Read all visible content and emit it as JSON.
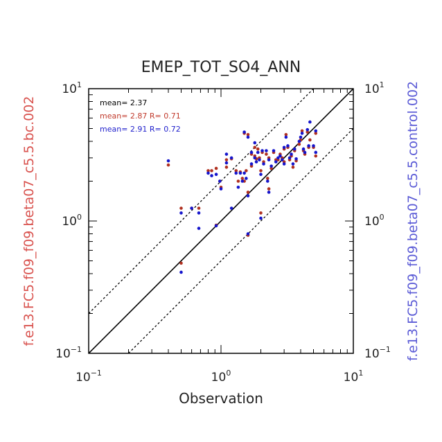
{
  "chart_data": {
    "type": "scatter",
    "title": "EMEP_TOT_SO4_ANN",
    "xlabel": "Observation",
    "ylabel_left": "f.e13.FC5.f09_f09.beta07_c5.5.bc.002",
    "ylabel_right": "f.e13.FC5.f09_f09.beta07_c5.5.control.002",
    "xscale": "log",
    "yscale": "log",
    "xlim": [
      0.1,
      10
    ],
    "ylim": [
      0.1,
      10
    ],
    "x_ticks": [
      {
        "base": "10",
        "exp": "−1",
        "value": 0.1
      },
      {
        "base": "10",
        "exp": "0",
        "value": 1
      },
      {
        "base": "10",
        "exp": "1",
        "value": 10
      }
    ],
    "y_ticks": [
      {
        "base": "10",
        "exp": "−1",
        "value": 0.1
      },
      {
        "base": "10",
        "exp": "0",
        "value": 1
      },
      {
        "base": "10",
        "exp": "1",
        "value": 10
      }
    ],
    "reference_lines": [
      {
        "name": "1:1",
        "factor": 1,
        "style": "solid"
      },
      {
        "name": "2:1",
        "factor": 2,
        "style": "dotted"
      },
      {
        "name": "1:2",
        "factor": 0.5,
        "style": "dotted"
      }
    ],
    "stats": [
      {
        "text": "mean= 2.37",
        "color": "#000000"
      },
      {
        "text": "mean= 2.87 R= 0.71",
        "color": "#c0392b"
      },
      {
        "text": "mean= 2.91 R= 0.72",
        "color": "#1f1fcc"
      }
    ],
    "series": [
      {
        "name": "f.e13.FC5.f09_f09.beta07_c5.5.bc.002",
        "color": "#b03020",
        "points": [
          [
            0.4,
            2.65
          ],
          [
            0.5,
            1.25
          ],
          [
            0.5,
            0.48
          ],
          [
            0.6,
            1.25
          ],
          [
            0.68,
            1.25
          ],
          [
            0.8,
            2.4
          ],
          [
            0.85,
            2.4
          ],
          [
            0.92,
            2.5
          ],
          [
            0.92,
            0.93
          ],
          [
            0.98,
            2.0
          ],
          [
            1.0,
            1.8
          ],
          [
            1.1,
            2.55
          ],
          [
            1.1,
            2.9
          ],
          [
            1.2,
            2.95
          ],
          [
            1.3,
            2.4
          ],
          [
            1.35,
            2.0
          ],
          [
            1.4,
            2.35
          ],
          [
            1.45,
            2.1
          ],
          [
            1.5,
            4.6
          ],
          [
            1.5,
            2.0
          ],
          [
            1.55,
            2.4
          ],
          [
            1.6,
            4.5
          ],
          [
            1.6,
            1.65
          ],
          [
            1.6,
            0.78
          ],
          [
            1.7,
            3.2
          ],
          [
            1.7,
            2.6
          ],
          [
            1.8,
            3.6
          ],
          [
            1.8,
            3.1
          ],
          [
            1.85,
            2.95
          ],
          [
            1.9,
            3.5
          ],
          [
            1.95,
            3.0
          ],
          [
            2.0,
            2.4
          ],
          [
            2.0,
            1.15
          ],
          [
            2.05,
            3.3
          ],
          [
            2.1,
            2.8
          ],
          [
            2.2,
            3.2
          ],
          [
            2.25,
            2.1
          ],
          [
            2.3,
            1.75
          ],
          [
            2.3,
            3.0
          ],
          [
            2.4,
            2.5
          ],
          [
            2.5,
            3.3
          ],
          [
            2.6,
            2.9
          ],
          [
            2.7,
            2.9
          ],
          [
            2.8,
            3.2
          ],
          [
            2.9,
            3.0
          ],
          [
            3.0,
            3.5
          ],
          [
            3.0,
            2.8
          ],
          [
            3.1,
            4.5
          ],
          [
            3.2,
            3.6
          ],
          [
            3.3,
            2.9
          ],
          [
            3.4,
            3.1
          ],
          [
            3.5,
            2.55
          ],
          [
            3.6,
            3.4
          ],
          [
            3.7,
            2.85
          ],
          [
            3.9,
            3.8
          ],
          [
            4.0,
            4.1
          ],
          [
            4.1,
            4.8
          ],
          [
            4.2,
            3.4
          ],
          [
            4.3,
            3.2
          ],
          [
            4.5,
            4.7
          ],
          [
            4.6,
            3.6
          ],
          [
            4.7,
            4.1
          ],
          [
            5.0,
            3.6
          ],
          [
            5.2,
            4.6
          ],
          [
            5.2,
            3.1
          ]
        ]
      },
      {
        "name": "f.e13.FC5.f09_f09.beta07_c5.5.control.002",
        "color": "#1515cc",
        "points": [
          [
            0.4,
            2.85
          ],
          [
            0.5,
            1.15
          ],
          [
            0.5,
            0.41
          ],
          [
            0.6,
            1.25
          ],
          [
            0.68,
            1.15
          ],
          [
            0.68,
            0.88
          ],
          [
            0.8,
            2.3
          ],
          [
            0.85,
            2.2
          ],
          [
            0.92,
            2.25
          ],
          [
            0.92,
            0.92
          ],
          [
            0.98,
            2.0
          ],
          [
            1.0,
            1.75
          ],
          [
            1.1,
            3.2
          ],
          [
            1.1,
            2.75
          ],
          [
            1.2,
            3.0
          ],
          [
            1.2,
            1.25
          ],
          [
            1.3,
            2.3
          ],
          [
            1.35,
            1.8
          ],
          [
            1.4,
            2.3
          ],
          [
            1.45,
            2.0
          ],
          [
            1.5,
            4.7
          ],
          [
            1.5,
            2.3
          ],
          [
            1.55,
            2.1
          ],
          [
            1.6,
            4.3
          ],
          [
            1.6,
            1.55
          ],
          [
            1.6,
            0.8
          ],
          [
            1.7,
            3.3
          ],
          [
            1.7,
            2.7
          ],
          [
            1.8,
            3.9
          ],
          [
            1.8,
            3.0
          ],
          [
            1.85,
            2.8
          ],
          [
            1.9,
            3.3
          ],
          [
            1.95,
            2.9
          ],
          [
            2.0,
            2.25
          ],
          [
            2.0,
            1.05
          ],
          [
            2.05,
            3.4
          ],
          [
            2.1,
            2.7
          ],
          [
            2.2,
            3.4
          ],
          [
            2.25,
            2.0
          ],
          [
            2.3,
            1.65
          ],
          [
            2.3,
            2.9
          ],
          [
            2.4,
            2.6
          ],
          [
            2.5,
            3.4
          ],
          [
            2.6,
            2.8
          ],
          [
            2.7,
            3.0
          ],
          [
            2.8,
            3.1
          ],
          [
            2.9,
            2.9
          ],
          [
            3.0,
            3.6
          ],
          [
            3.0,
            2.7
          ],
          [
            3.1,
            4.3
          ],
          [
            3.2,
            3.7
          ],
          [
            3.3,
            3.0
          ],
          [
            3.4,
            3.2
          ],
          [
            3.5,
            2.7
          ],
          [
            3.6,
            3.5
          ],
          [
            3.7,
            2.95
          ],
          [
            3.9,
            4.0
          ],
          [
            4.0,
            4.3
          ],
          [
            4.1,
            4.6
          ],
          [
            4.2,
            3.5
          ],
          [
            4.3,
            3.3
          ],
          [
            4.5,
            4.9
          ],
          [
            4.6,
            3.7
          ],
          [
            4.7,
            5.6
          ],
          [
            5.0,
            3.7
          ],
          [
            5.2,
            4.8
          ],
          [
            5.2,
            3.3
          ]
        ]
      }
    ]
  }
}
